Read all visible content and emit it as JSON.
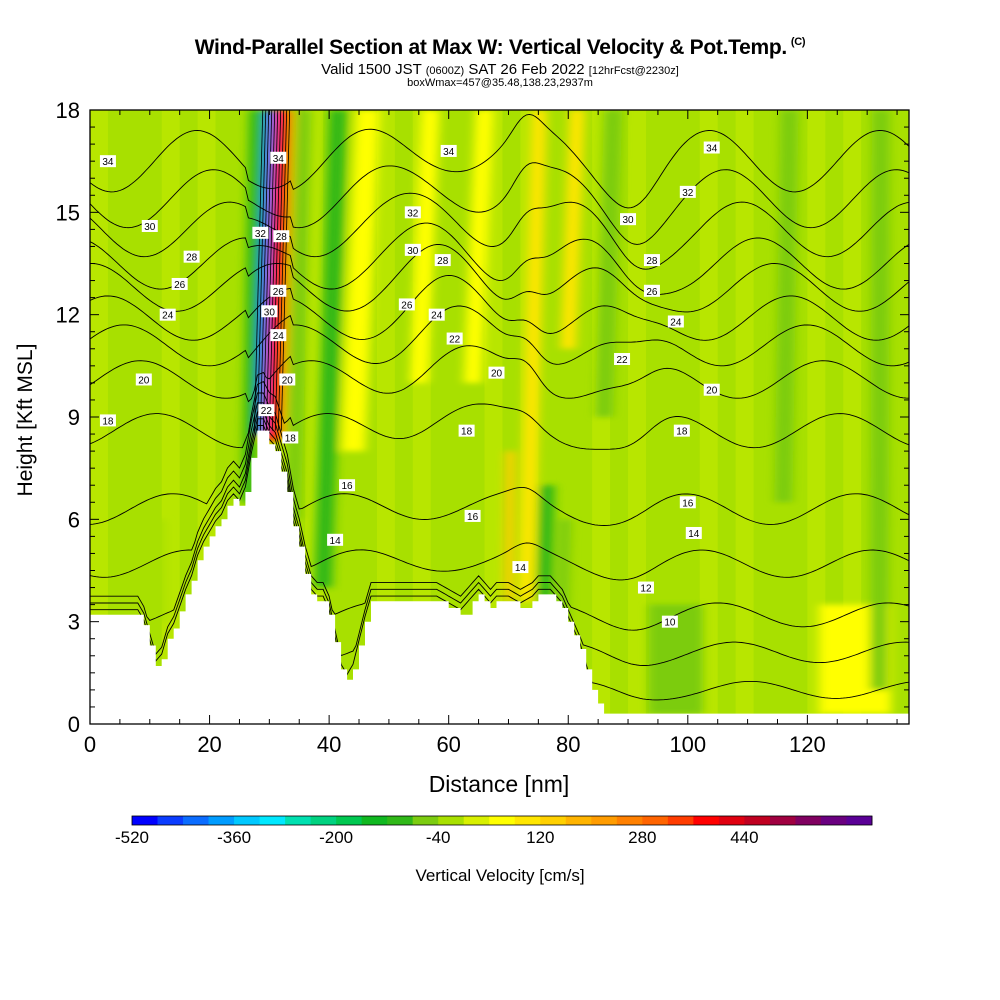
{
  "chart_data": {
    "type": "heatmap",
    "title": "Wind-Parallel Section at Max W: Vertical Velocity & Pot.Temp.",
    "title_mark": "(C)",
    "subtitle_prefix": "Valid 1500 JST",
    "subtitle_utc": "(0600Z)",
    "subtitle_date": "SAT 26 Feb 2022",
    "subtitle_fcst": "[12hrFcst@2230z]",
    "subtitle2": "boxWmax=457@35.48,138.23,2937m",
    "xlabel": "Distance [nm]",
    "ylabel": "Height [Kft MSL]",
    "xlim": [
      0,
      137
    ],
    "ylim": [
      0,
      18
    ],
    "x_ticks": [
      "0",
      "20",
      "40",
      "60",
      "80",
      "100",
      "120"
    ],
    "y_ticks": [
      "0",
      "3",
      "6",
      "9",
      "12",
      "15",
      "18"
    ],
    "colorbar": {
      "label": "Vertical Velocity [cm/s]",
      "tick_labels": [
        "-520",
        "-360",
        "-200",
        "-40",
        "120",
        "280",
        "440"
      ],
      "colors": [
        "#0000ff",
        "#0a3cff",
        "#0a6cff",
        "#009cff",
        "#00c8ff",
        "#00e8ff",
        "#00e0b0",
        "#00d280",
        "#00c850",
        "#10b820",
        "#30b818",
        "#7ccc10",
        "#a8e000",
        "#d8f000",
        "#ffff00",
        "#ffe600",
        "#ffd000",
        "#ffb400",
        "#ff9c00",
        "#ff8000",
        "#ff6400",
        "#ff3c00",
        "#ff0000",
        "#e00010",
        "#c00020",
        "#a00040",
        "#800060",
        "#6a0080",
        "#5a0096"
      ]
    },
    "terrain_kft": [
      [
        0,
        3.2
      ],
      [
        2,
        3.2
      ],
      [
        4,
        3.2
      ],
      [
        6,
        3.2
      ],
      [
        8,
        3.2
      ],
      [
        9,
        2.9
      ],
      [
        10,
        2.3
      ],
      [
        11,
        1.7
      ],
      [
        12,
        1.9
      ],
      [
        13,
        2.5
      ],
      [
        14,
        2.8
      ],
      [
        15,
        3.3
      ],
      [
        16,
        3.8
      ],
      [
        17,
        4.2
      ],
      [
        18,
        4.8
      ],
      [
        19,
        5.2
      ],
      [
        20,
        5.5
      ],
      [
        21,
        5.8
      ],
      [
        22,
        6.0
      ],
      [
        23,
        6.4
      ],
      [
        24,
        6.6
      ],
      [
        25,
        6.4
      ],
      [
        26,
        6.8
      ],
      [
        27,
        7.8
      ],
      [
        28,
        8.6
      ],
      [
        29,
        8.6
      ],
      [
        30,
        8.2
      ],
      [
        31,
        8.0
      ],
      [
        32,
        7.4
      ],
      [
        33,
        6.8
      ],
      [
        34,
        5.8
      ],
      [
        35,
        5.2
      ],
      [
        36,
        4.4
      ],
      [
        37,
        3.8
      ],
      [
        38,
        3.6
      ],
      [
        39,
        3.6
      ],
      [
        40,
        3.2
      ],
      [
        41,
        2.4
      ],
      [
        42,
        1.6
      ],
      [
        43,
        1.3
      ],
      [
        44,
        1.6
      ],
      [
        45,
        2.3
      ],
      [
        46,
        3.0
      ],
      [
        47,
        3.6
      ],
      [
        50,
        3.6
      ],
      [
        55,
        3.6
      ],
      [
        58,
        3.6
      ],
      [
        60,
        3.4
      ],
      [
        62,
        3.2
      ],
      [
        64,
        3.6
      ],
      [
        65,
        3.8
      ],
      [
        66,
        3.6
      ],
      [
        67,
        3.4
      ],
      [
        68,
        3.6
      ],
      [
        70,
        3.6
      ],
      [
        72,
        3.4
      ],
      [
        74,
        3.6
      ],
      [
        75,
        3.8
      ],
      [
        76,
        3.8
      ],
      [
        77,
        3.8
      ],
      [
        78,
        3.6
      ],
      [
        79,
        3.4
      ],
      [
        80,
        3.0
      ],
      [
        81,
        2.6
      ],
      [
        82,
        2.2
      ],
      [
        83,
        1.6
      ],
      [
        84,
        1.0
      ],
      [
        85,
        0.6
      ],
      [
        86,
        0.3
      ],
      [
        137,
        0.3
      ]
    ],
    "theta_contours": [
      {
        "value": 8,
        "base": 1.0
      },
      {
        "value": 10,
        "base": 2.1
      },
      {
        "value": 12,
        "base": 3.2
      },
      {
        "value": 14,
        "base": 4.7
      },
      {
        "value": 16,
        "base": 6.3
      },
      {
        "value": 18,
        "base": 8.6
      },
      {
        "value": 20,
        "base": 10.1
      },
      {
        "value": 22,
        "base": 11.1
      },
      {
        "value": 24,
        "base": 11.9
      },
      {
        "value": 26,
        "base": 12.8
      },
      {
        "value": 28,
        "base": 13.5
      },
      {
        "value": 30,
        "base": 14.5
      },
      {
        "value": 32,
        "base": 15.4
      },
      {
        "value": 34,
        "base": 16.5
      }
    ],
    "contour_labels": [
      {
        "text": "34",
        "x": 3,
        "y": 16.5
      },
      {
        "text": "30",
        "x": 10,
        "y": 14.6
      },
      {
        "text": "28",
        "x": 17,
        "y": 13.7
      },
      {
        "text": "26",
        "x": 15,
        "y": 12.9
      },
      {
        "text": "24",
        "x": 13,
        "y": 12.0
      },
      {
        "text": "20",
        "x": 9,
        "y": 10.1
      },
      {
        "text": "18",
        "x": 3,
        "y": 8.9
      },
      {
        "text": "34",
        "x": 31.5,
        "y": 16.6
      },
      {
        "text": "28",
        "x": 32,
        "y": 14.3
      },
      {
        "text": "32",
        "x": 28.5,
        "y": 14.4
      },
      {
        "text": "26",
        "x": 31.5,
        "y": 12.7
      },
      {
        "text": "30",
        "x": 30,
        "y": 12.1
      },
      {
        "text": "24",
        "x": 31.5,
        "y": 11.4
      },
      {
        "text": "20",
        "x": 33,
        "y": 10.1
      },
      {
        "text": "22",
        "x": 29.5,
        "y": 9.2
      },
      {
        "text": "18",
        "x": 33.5,
        "y": 8.4
      },
      {
        "text": "16",
        "x": 43,
        "y": 7.0
      },
      {
        "text": "14",
        "x": 41,
        "y": 5.4
      },
      {
        "text": "34",
        "x": 60,
        "y": 16.8
      },
      {
        "text": "32",
        "x": 54,
        "y": 15.0
      },
      {
        "text": "30",
        "x": 54,
        "y": 13.9
      },
      {
        "text": "28",
        "x": 59,
        "y": 13.6
      },
      {
        "text": "26",
        "x": 53,
        "y": 12.3
      },
      {
        "text": "24",
        "x": 58,
        "y": 12.0
      },
      {
        "text": "22",
        "x": 61,
        "y": 11.3
      },
      {
        "text": "20",
        "x": 68,
        "y": 10.3
      },
      {
        "text": "18",
        "x": 63,
        "y": 8.6
      },
      {
        "text": "16",
        "x": 64,
        "y": 6.1
      },
      {
        "text": "14",
        "x": 72,
        "y": 4.6
      },
      {
        "text": "34",
        "x": 104,
        "y": 16.9
      },
      {
        "text": "32",
        "x": 100,
        "y": 15.6
      },
      {
        "text": "30",
        "x": 90,
        "y": 14.8
      },
      {
        "text": "28",
        "x": 94,
        "y": 13.6
      },
      {
        "text": "26",
        "x": 94,
        "y": 12.7
      },
      {
        "text": "24",
        "x": 98,
        "y": 11.8
      },
      {
        "text": "22",
        "x": 89,
        "y": 10.7
      },
      {
        "text": "20",
        "x": 104,
        "y": 9.8
      },
      {
        "text": "18",
        "x": 99,
        "y": 8.6
      },
      {
        "text": "16",
        "x": 100,
        "y": 6.5
      },
      {
        "text": "14",
        "x": 101,
        "y": 5.6
      },
      {
        "text": "12",
        "x": 93,
        "y": 4.0
      },
      {
        "text": "10",
        "x": 97,
        "y": 3.0
      }
    ],
    "w_features": [
      {
        "x": 30.5,
        "y0": 8.3,
        "y1": 18,
        "w": 2.6,
        "value": 380,
        "slant": 1.6
      },
      {
        "x": 28.5,
        "y0": 8.5,
        "y1": 18,
        "w": 1.8,
        "value": -420,
        "slant": 1.6
      },
      {
        "x": 26.5,
        "y0": 6.5,
        "y1": 18,
        "w": 2.2,
        "value": -120,
        "slant": 1.2
      },
      {
        "x": 34,
        "y0": 6,
        "y1": 18,
        "w": 2.5,
        "value": -60,
        "slant": 1.8
      },
      {
        "x": 39,
        "y0": 4,
        "y1": 18,
        "w": 3,
        "value": -90,
        "slant": 2.5
      },
      {
        "x": 44,
        "y0": 8,
        "y1": 18,
        "w": 4,
        "value": 70,
        "slant": 2.5
      },
      {
        "x": 55,
        "y0": 10,
        "y1": 18,
        "w": 3,
        "value": 60,
        "slant": 2
      },
      {
        "x": 64,
        "y0": 10,
        "y1": 18,
        "w": 3,
        "value": 50,
        "slant": 2
      },
      {
        "x": 73,
        "y0": 3.6,
        "y1": 18,
        "w": 2.4,
        "value": 110,
        "slant": 2.2
      },
      {
        "x": 70,
        "y0": 3.6,
        "y1": 8,
        "w": 1.6,
        "value": 150,
        "slant": 0.3
      },
      {
        "x": 76,
        "y0": 3.6,
        "y1": 7,
        "w": 2.5,
        "value": -110,
        "slant": 0.5
      },
      {
        "x": 79,
        "y0": 3,
        "y1": 6,
        "w": 2,
        "value": -70,
        "slant": 0.5
      },
      {
        "x": 80,
        "y0": 11,
        "y1": 18,
        "w": 2.5,
        "value": 90,
        "slant": 1.5
      },
      {
        "x": 86,
        "y0": 9,
        "y1": 18,
        "w": 3,
        "value": -50,
        "slant": 1.5
      },
      {
        "x": 98,
        "y0": 0.3,
        "y1": 3.5,
        "w": 9,
        "value": -45,
        "slant": 0
      },
      {
        "x": 128,
        "y0": 0.3,
        "y1": 3.5,
        "w": 12,
        "value": 60,
        "slant": 0
      },
      {
        "x": 116,
        "y0": 6.5,
        "y1": 18,
        "w": 3,
        "value": -50,
        "slant": 1
      },
      {
        "x": 132,
        "y0": 1,
        "y1": 18,
        "w": 3,
        "value": -45,
        "slant": 0.3
      },
      {
        "x": 10,
        "y0": 3,
        "y1": 6,
        "w": 5,
        "value": -40,
        "slant": 0
      }
    ]
  }
}
